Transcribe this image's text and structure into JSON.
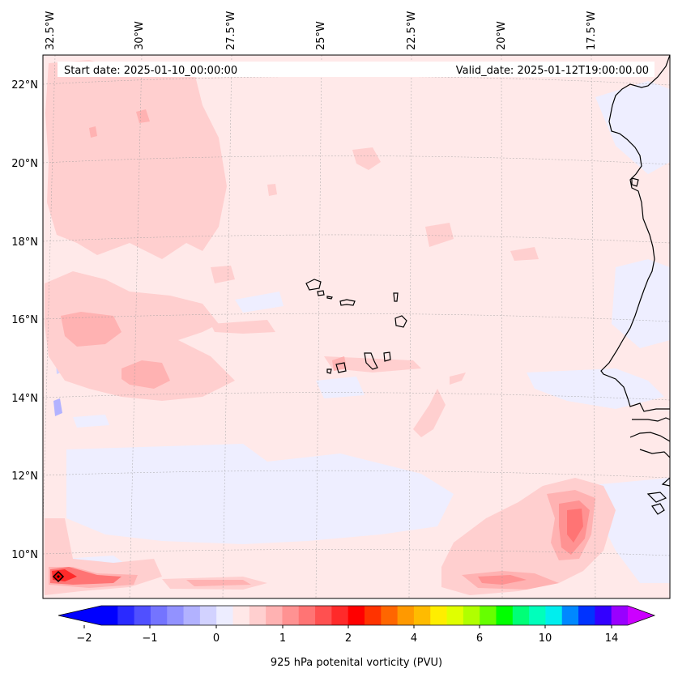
{
  "map": {
    "start_label": "Start date: 2025-01-10_00:00:00",
    "valid_label": "Valid_date: 2025-01-12T19:00:00.00",
    "lon_labels": [
      "32.5°W",
      "30°W",
      "27.5°W",
      "25°W",
      "22.5°W",
      "20°W",
      "17.5°W"
    ],
    "lat_labels": [
      "22°N",
      "20°N",
      "18°N",
      "16°N",
      "14°N",
      "12°N",
      "10°N"
    ]
  },
  "colorbar": {
    "label": "925 hPa potenital vorticity (PVU)",
    "tick_labels": [
      "−2",
      "−1",
      "0",
      "1",
      "2",
      "4",
      "6",
      "10",
      "14"
    ],
    "colors": [
      "#0000ff",
      "#2a2aff",
      "#5050ff",
      "#7474ff",
      "#9292ff",
      "#b2b2ff",
      "#d2d2ff",
      "#ededff",
      "#ffe8e8",
      "#ffcfcf",
      "#ffb2b2",
      "#ff9292",
      "#ff7474",
      "#ff5050",
      "#ff2a2a",
      "#ff0000",
      "#ff3300",
      "#ff6600",
      "#ff9900",
      "#ffbb00",
      "#ffee00",
      "#e0ff00",
      "#b0ff00",
      "#66ff00",
      "#00ff00",
      "#00ff77",
      "#00ffbb",
      "#00eeee",
      "#0088ff",
      "#0033ff",
      "#3300ff",
      "#9900ff"
    ]
  }
}
